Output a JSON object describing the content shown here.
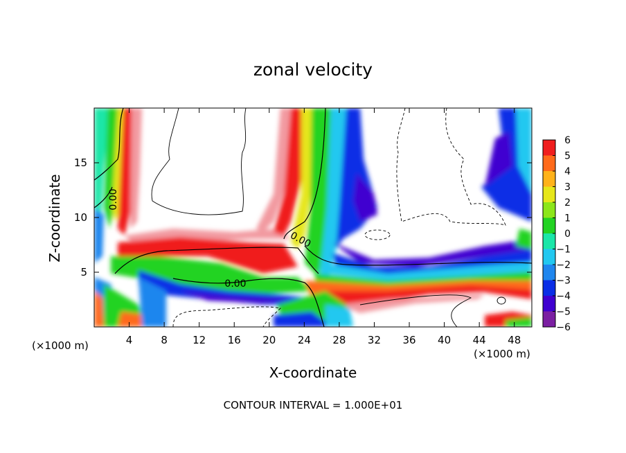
{
  "chart_data": {
    "type": "heatmap",
    "title": "zonal velocity",
    "xlabel": "X-coordinate",
    "ylabel": "Z-coordinate",
    "x_unit_left": "(×1000 m)",
    "x_unit_right": "(×1000 m)",
    "xlim": [
      0,
      50
    ],
    "ylim": [
      0,
      20
    ],
    "xticks": [
      4,
      8,
      12,
      16,
      20,
      24,
      28,
      32,
      36,
      40,
      44,
      48
    ],
    "yticks": [
      5,
      10,
      15
    ],
    "colorbar": {
      "ticks": [
        6,
        5,
        4,
        3,
        2,
        1,
        0,
        -1,
        -2,
        -3,
        -4,
        -5,
        -6
      ],
      "tick_labels": [
        "6",
        "5",
        "4",
        "3",
        "2",
        "1",
        "0",
        "−1",
        "−2",
        "−3",
        "−4",
        "−5",
        "−6"
      ],
      "range": [
        -6,
        6
      ],
      "colors": [
        "#7b1fa2",
        "#3f00d0",
        "#0a2ee6",
        "#1f86ee",
        "#22c8f0",
        "#1ae6a8",
        "#22d322",
        "#8ce61a",
        "#e6e61a",
        "#ffb21a",
        "#ff6a1a",
        "#f01e1e",
        "#f29aa0"
      ]
    },
    "contour_labels": [
      "0.00",
      "0.00",
      "0.00"
    ],
    "contour_interval_label": "CONTOUR INTERVAL = 1.000E+01",
    "grid": false
  }
}
